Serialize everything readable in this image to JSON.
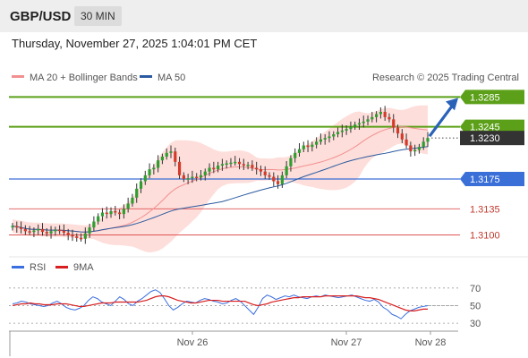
{
  "header": {
    "pair": "GBP/USD",
    "timeframe": "30 MIN"
  },
  "datetime": "Thursday, November 27, 2025 1:04:01 PM CET",
  "legend": {
    "ma20": "MA 20 + Bollinger Bands",
    "ma50": "MA 50",
    "credit": "Research © 2025 Trading Central",
    "rsi": "RSI",
    "ma9": "9MA"
  },
  "colors": {
    "green": "#5ba018",
    "blue": "#3a6fd8",
    "red": "#e05555",
    "candle_up": "#2f9e2f",
    "candle_down": "#d43a2a",
    "bollinger": "#fdd8d4",
    "ma50": "#2c5aa0",
    "ma20": "#f29090",
    "price_badge": "#333333",
    "arrow": "#2a62b8",
    "rsi": "#3b6fe0",
    "rsi_ma": "#d81e1e"
  },
  "chart_data": {
    "type": "candlestick",
    "price_range": [
      1.3085,
      1.3295
    ],
    "x_labels": [
      "Nov 26",
      "Nov 27",
      "Nov 28"
    ],
    "levels": [
      {
        "value": 1.3285,
        "label": "1.3285",
        "style": "green-badge"
      },
      {
        "value": 1.3245,
        "label": "1.3245",
        "style": "green-badge"
      },
      {
        "value": 1.323,
        "label": "1.3230",
        "style": "current-price"
      },
      {
        "value": 1.3175,
        "label": "1.3175",
        "style": "blue-badge"
      },
      {
        "value": 1.3135,
        "label": "1.3135",
        "style": "red-text"
      },
      {
        "value": 1.31,
        "label": "1.3100",
        "style": "red-text"
      }
    ],
    "close_series": [
      1.3112,
      1.311,
      1.3108,
      1.3105,
      1.3104,
      1.3106,
      1.3108,
      1.3104,
      1.3102,
      1.3105,
      1.3107,
      1.3106,
      1.3103,
      1.31,
      1.3098,
      1.3096,
      1.3095,
      1.3102,
      1.311,
      1.3118,
      1.3125,
      1.313,
      1.3128,
      1.3132,
      1.313,
      1.3128,
      1.3135,
      1.3142,
      1.315,
      1.3162,
      1.3172,
      1.318,
      1.3188,
      1.319,
      1.32,
      1.3205,
      1.321,
      1.3212,
      1.3198,
      1.318,
      1.3175,
      1.3176,
      1.3178,
      1.3177,
      1.318,
      1.3185,
      1.319,
      1.3188,
      1.3193,
      1.3195,
      1.3196,
      1.3197,
      1.3198,
      1.3195,
      1.3193,
      1.3194,
      1.319,
      1.3188,
      1.3185,
      1.318,
      1.3178,
      1.3172,
      1.3168,
      1.318,
      1.3192,
      1.3203,
      1.321,
      1.3215,
      1.322,
      1.3218,
      1.3221,
      1.3225,
      1.3228,
      1.323,
      1.3232,
      1.3235,
      1.3238,
      1.324,
      1.3242,
      1.3245,
      1.3248,
      1.325,
      1.3252,
      1.3255,
      1.3258,
      1.3262,
      1.3265,
      1.3258,
      1.3255,
      1.3244,
      1.3236,
      1.3228,
      1.322,
      1.3212,
      1.3214,
      1.3218,
      1.3225,
      1.323
    ],
    "rsi": {
      "levels": [
        70,
        50,
        30
      ],
      "range": [
        25,
        80
      ],
      "values": [
        52,
        53,
        55,
        54,
        52,
        51,
        50,
        49,
        50,
        53,
        55,
        52,
        48,
        46,
        45,
        47,
        50,
        56,
        60,
        58,
        54,
        52,
        50,
        55,
        60,
        57,
        52,
        50,
        55,
        58,
        62,
        66,
        68,
        65,
        58,
        50,
        45,
        48,
        52,
        55,
        54,
        53,
        56,
        58,
        57,
        55,
        54,
        52,
        53,
        56,
        58,
        55,
        50,
        45,
        40,
        48,
        58,
        62,
        60,
        57,
        59,
        61,
        60,
        62,
        60,
        59,
        58,
        60,
        61,
        60,
        62,
        61,
        60,
        59,
        60,
        61,
        62,
        60,
        58,
        56,
        55,
        57,
        54,
        48,
        45,
        40,
        38,
        35,
        40,
        44,
        46,
        48,
        49,
        50
      ],
      "ma9": [
        50,
        51,
        52,
        52,
        53,
        52,
        52,
        51,
        51,
        51,
        52,
        52,
        52,
        51,
        50,
        49,
        49,
        50,
        51,
        52,
        53,
        53,
        53,
        54,
        54,
        54,
        54,
        54,
        54,
        55,
        56,
        58,
        60,
        61,
        61,
        60,
        58,
        56,
        55,
        54,
        53,
        53,
        54,
        55,
        56,
        56,
        56,
        55,
        55,
        55,
        55,
        55,
        55,
        53,
        51,
        50,
        51,
        52,
        54,
        55,
        56,
        57,
        58,
        59,
        59,
        60,
        60,
        60,
        60,
        60,
        61,
        61,
        61,
        61,
        61,
        61,
        61,
        61,
        60,
        59,
        59,
        58,
        57,
        55,
        53,
        51,
        49,
        47,
        45,
        44,
        44,
        45,
        46,
        46
      ]
    }
  }
}
